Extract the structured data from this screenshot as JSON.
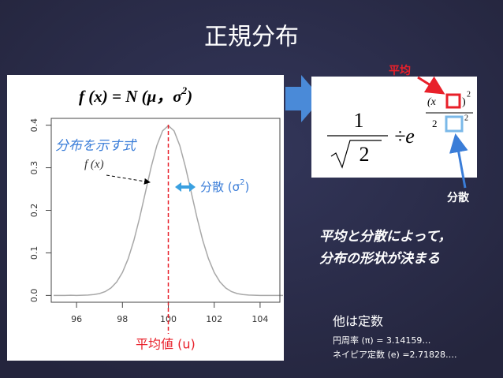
{
  "title": "正規分布",
  "formula_title": {
    "text": "f (x) = N (μ，σ",
    "sup": "2",
    "close": ")"
  },
  "annotation_curve": "分布を示す式",
  "annotation_fx": "f (x)",
  "annotation_variance": {
    "text": "分散 (σ",
    "sup": "2",
    "close": ")"
  },
  "annotation_mean": "平均値 (u)",
  "formula": {
    "numerator": "1",
    "root": "2",
    "operator": "÷e",
    "exp_num": "(x",
    "exp_num_close": ")",
    "exp_num_sup": "2",
    "exp_den": "2",
    "exp_den_sup": "2"
  },
  "label_mean": "平均",
  "label_variance": "分散",
  "statement": [
    "平均と分散によって，",
    "分布の形状が決まる"
  ],
  "constants": {
    "heading": "他は定数",
    "lines": [
      "円周率 (π) = 3.14159…",
      "ネイピア定数 (e) =2.71828…."
    ]
  },
  "chart_data": {
    "type": "line",
    "x": [
      95,
      95.25,
      95.5,
      95.75,
      96,
      96.25,
      96.5,
      96.75,
      97,
      97.25,
      97.5,
      97.75,
      98,
      98.25,
      98.5,
      98.75,
      99,
      99.25,
      99.5,
      99.75,
      100,
      100.25,
      100.5,
      100.75,
      101,
      101.25,
      101.5,
      101.75,
      102,
      102.25,
      102.5,
      102.75,
      103,
      103.25,
      103.5,
      103.75,
      104,
      104.25,
      104.5,
      104.75,
      105
    ],
    "series": [
      {
        "color": "#a8a8a8",
        "values": [
          0,
          0,
          0,
          0.0004,
          0.0001,
          0.0004,
          0.0009,
          0.002,
          0.0044,
          0.0091,
          0.0175,
          0.0317,
          0.054,
          0.0863,
          0.1295,
          0.1826,
          0.242,
          0.3011,
          0.3521,
          0.3867,
          0.3989,
          0.3867,
          0.3521,
          0.3011,
          0.242,
          0.1826,
          0.1295,
          0.0863,
          0.054,
          0.0317,
          0.0175,
          0.0091,
          0.0044,
          0.002,
          0.0009,
          0.0004,
          0.0001,
          0,
          0,
          0,
          0
        ]
      }
    ],
    "mean": 100,
    "xlim": [
      95,
      105
    ],
    "xticks": [
      96,
      98,
      100,
      102,
      104
    ],
    "ylim": [
      -0.016,
      0.416
    ],
    "yticks": [
      {
        "value": 0,
        "label": "0.0"
      },
      0.1,
      0.2,
      0.3,
      0.4
    ]
  }
}
